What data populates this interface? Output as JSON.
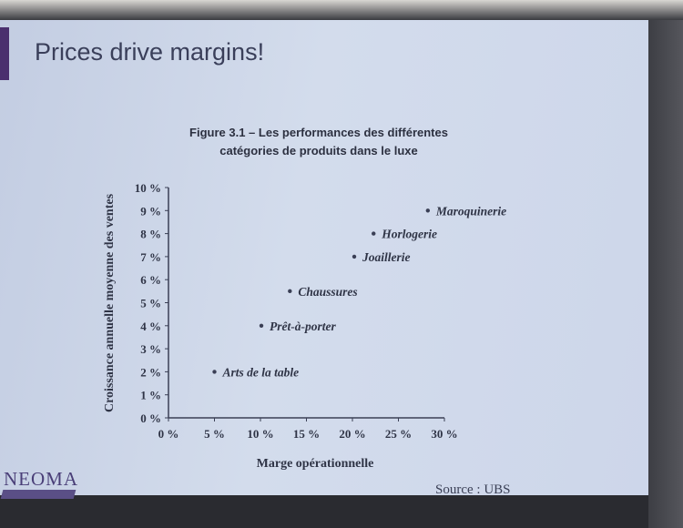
{
  "slide": {
    "title": "Prices drive margins!",
    "figure_title_line1": "Figure 3.1 – Les performances des différentes",
    "figure_title_line2": "catégories de produits dans le luxe",
    "source": "Source : UBS",
    "logo_text": "NEOMA",
    "accent_color": "#4a2f6e"
  },
  "chart_data": {
    "type": "scatter",
    "title": "Figure 3.1 – Les performances des différentes catégories de produits dans le luxe",
    "xlabel": "Marge opérationnelle",
    "ylabel": "Croissance annuelle moyenne des ventes",
    "xlim": [
      0,
      30
    ],
    "ylim": [
      0,
      10
    ],
    "x_ticks": [
      "0 %",
      "5 %",
      "10 %",
      "15 %",
      "20 %",
      "25 %",
      "30 %"
    ],
    "y_ticks": [
      "0 %",
      "1 %",
      "2 %",
      "3 %",
      "4 %",
      "5 %",
      "6 %",
      "7 %",
      "8 %",
      "9 %",
      "10 %"
    ],
    "grid": false,
    "points": [
      {
        "label": "Maroquinerie",
        "x": 28.2,
        "y": 9
      },
      {
        "label": "Horlogerie",
        "x": 22.3,
        "y": 8
      },
      {
        "label": "Joaillerie",
        "x": 20.2,
        "y": 7
      },
      {
        "label": "Chaussures",
        "x": 13.2,
        "y": 5.5
      },
      {
        "label": "Prêt-à-porter",
        "x": 10.1,
        "y": 4
      },
      {
        "label": "Arts de la table",
        "x": 5,
        "y": 2
      }
    ],
    "source": "Source : UBS"
  }
}
